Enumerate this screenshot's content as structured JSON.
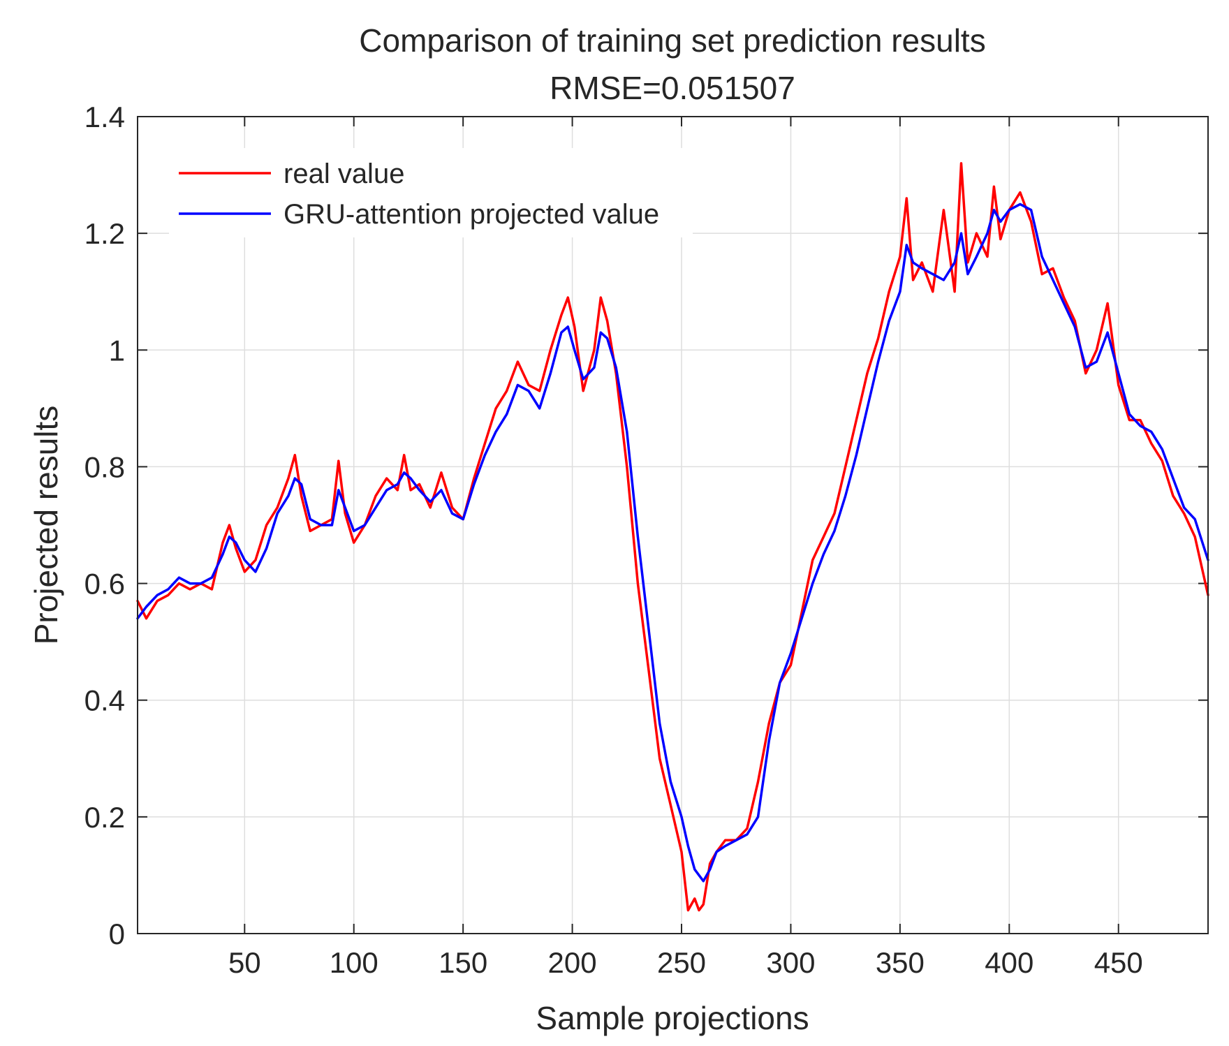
{
  "chart_data": {
    "type": "line",
    "title": "Comparison of training set prediction results",
    "subtitle": "RMSE=0.051507",
    "xlabel": "Sample projections",
    "ylabel": "Projected results",
    "xlim": [
      1,
      491
    ],
    "ylim": [
      0,
      1.4
    ],
    "xticks": [
      50,
      100,
      150,
      200,
      250,
      300,
      350,
      400,
      450
    ],
    "xtick_labels": [
      "50",
      "100",
      "150",
      "200",
      "250",
      "300",
      "350",
      "400",
      "450"
    ],
    "yticks": [
      0,
      0.2,
      0.4,
      0.6,
      0.8,
      1.0,
      1.2,
      1.4
    ],
    "ytick_labels": [
      "0",
      "0.2",
      "0.4",
      "0.6",
      "0.8",
      "1",
      "1.2",
      "1.4"
    ],
    "grid": true,
    "legend_position": "top-left",
    "series": [
      {
        "name": "real value",
        "color": "#ff0000",
        "x": [
          1,
          5,
          10,
          15,
          20,
          25,
          30,
          35,
          40,
          43,
          46,
          50,
          55,
          60,
          65,
          70,
          73,
          76,
          80,
          85,
          90,
          93,
          96,
          100,
          105,
          110,
          115,
          120,
          123,
          126,
          130,
          135,
          140,
          145,
          150,
          155,
          160,
          165,
          170,
          175,
          180,
          185,
          190,
          195,
          198,
          201,
          205,
          210,
          213,
          216,
          220,
          225,
          230,
          235,
          240,
          245,
          250,
          253,
          256,
          258,
          260,
          263,
          266,
          270,
          275,
          280,
          285,
          290,
          295,
          300,
          305,
          310,
          315,
          320,
          325,
          330,
          335,
          340,
          345,
          350,
          353,
          356,
          360,
          365,
          370,
          375,
          378,
          381,
          385,
          390,
          393,
          396,
          400,
          405,
          410,
          415,
          420,
          425,
          430,
          435,
          440,
          445,
          450,
          455,
          460,
          465,
          470,
          475,
          480,
          485,
          491
        ],
        "values": [
          0.57,
          0.54,
          0.57,
          0.58,
          0.6,
          0.59,
          0.6,
          0.59,
          0.67,
          0.7,
          0.66,
          0.62,
          0.64,
          0.7,
          0.73,
          0.78,
          0.82,
          0.75,
          0.69,
          0.7,
          0.71,
          0.81,
          0.72,
          0.67,
          0.7,
          0.75,
          0.78,
          0.76,
          0.82,
          0.76,
          0.77,
          0.73,
          0.79,
          0.73,
          0.71,
          0.78,
          0.84,
          0.9,
          0.93,
          0.98,
          0.94,
          0.93,
          1.0,
          1.06,
          1.09,
          1.04,
          0.93,
          1.0,
          1.09,
          1.05,
          0.96,
          0.8,
          0.6,
          0.45,
          0.3,
          0.22,
          0.14,
          0.04,
          0.06,
          0.04,
          0.05,
          0.12,
          0.14,
          0.16,
          0.16,
          0.18,
          0.26,
          0.36,
          0.43,
          0.46,
          0.55,
          0.64,
          0.68,
          0.72,
          0.8,
          0.88,
          0.96,
          1.02,
          1.1,
          1.16,
          1.26,
          1.12,
          1.15,
          1.1,
          1.24,
          1.1,
          1.32,
          1.15,
          1.2,
          1.16,
          1.28,
          1.19,
          1.24,
          1.27,
          1.22,
          1.13,
          1.14,
          1.09,
          1.05,
          0.96,
          1.0,
          1.08,
          0.94,
          0.88,
          0.88,
          0.84,
          0.81,
          0.75,
          0.72,
          0.68,
          0.58
        ]
      },
      {
        "name": "GRU-attention projected value",
        "color": "#0000ff",
        "x": [
          1,
          5,
          10,
          15,
          20,
          25,
          30,
          35,
          40,
          43,
          46,
          50,
          55,
          60,
          65,
          70,
          73,
          76,
          80,
          85,
          90,
          93,
          96,
          100,
          105,
          110,
          115,
          120,
          123,
          126,
          130,
          135,
          140,
          145,
          150,
          155,
          160,
          165,
          170,
          175,
          180,
          185,
          190,
          195,
          198,
          201,
          205,
          210,
          213,
          216,
          220,
          225,
          230,
          235,
          240,
          245,
          250,
          253,
          256,
          258,
          260,
          263,
          266,
          270,
          275,
          280,
          285,
          290,
          295,
          300,
          305,
          310,
          315,
          320,
          325,
          330,
          335,
          340,
          345,
          350,
          353,
          356,
          360,
          365,
          370,
          375,
          378,
          381,
          385,
          390,
          393,
          396,
          400,
          405,
          410,
          415,
          420,
          425,
          430,
          435,
          440,
          445,
          450,
          455,
          460,
          465,
          470,
          475,
          480,
          485,
          491
        ],
        "values": [
          0.54,
          0.56,
          0.58,
          0.59,
          0.61,
          0.6,
          0.6,
          0.61,
          0.65,
          0.68,
          0.67,
          0.64,
          0.62,
          0.66,
          0.72,
          0.75,
          0.78,
          0.77,
          0.71,
          0.7,
          0.7,
          0.76,
          0.73,
          0.69,
          0.7,
          0.73,
          0.76,
          0.77,
          0.79,
          0.78,
          0.76,
          0.74,
          0.76,
          0.72,
          0.71,
          0.77,
          0.82,
          0.86,
          0.89,
          0.94,
          0.93,
          0.9,
          0.96,
          1.03,
          1.04,
          1.0,
          0.95,
          0.97,
          1.03,
          1.02,
          0.97,
          0.86,
          0.68,
          0.52,
          0.36,
          0.26,
          0.2,
          0.15,
          0.11,
          0.1,
          0.09,
          0.11,
          0.14,
          0.15,
          0.16,
          0.17,
          0.2,
          0.33,
          0.43,
          0.48,
          0.54,
          0.6,
          0.65,
          0.69,
          0.75,
          0.82,
          0.9,
          0.98,
          1.05,
          1.1,
          1.18,
          1.15,
          1.14,
          1.13,
          1.12,
          1.15,
          1.2,
          1.13,
          1.16,
          1.2,
          1.24,
          1.22,
          1.24,
          1.25,
          1.24,
          1.16,
          1.12,
          1.08,
          1.04,
          0.97,
          0.98,
          1.03,
          0.96,
          0.89,
          0.87,
          0.86,
          0.83,
          0.78,
          0.73,
          0.71,
          0.64
        ]
      }
    ]
  }
}
